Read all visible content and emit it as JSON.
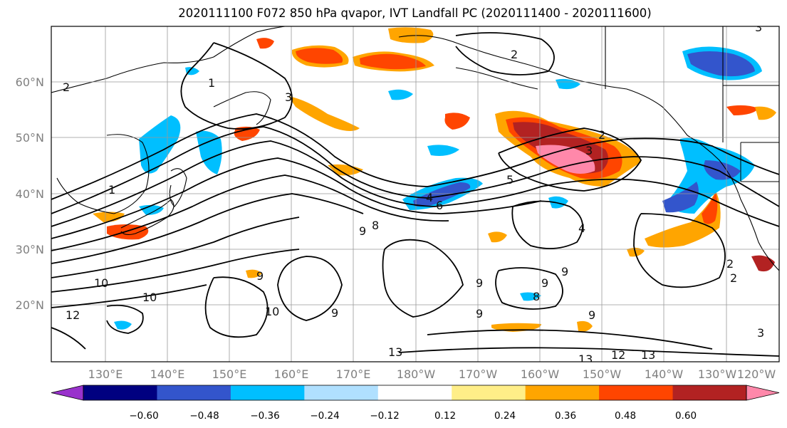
{
  "title": "2020111100 F072 850 hPa qvapor, IVT Landfall PC (2020111400 - 2020111600)",
  "lat_labels": [
    "60°N",
    "50°N",
    "40°N",
    "30°N",
    "20°N"
  ],
  "lon_labels": [
    "130°E",
    "140°E",
    "150°E",
    "160°E",
    "170°E",
    "180°W",
    "170°W",
    "160°W",
    "150°W",
    "140°W",
    "130°W",
    "120°W"
  ],
  "contour_labels": [
    "2",
    "1",
    "2",
    "1",
    "3",
    "4",
    "5",
    "6",
    "8",
    "9",
    "10",
    "10",
    "12",
    "13",
    "3",
    "2",
    "2",
    "4",
    "9",
    "9",
    "9",
    "9",
    "9",
    "8",
    "13",
    "12",
    "13",
    "3",
    "2",
    "3",
    "9",
    "10",
    "9"
  ],
  "colorbar": {
    "tick_labels": [
      "−0.60",
      "−0.48",
      "−0.36",
      "−0.24",
      "−0.12",
      "0.12",
      "0.24",
      "0.36",
      "0.48",
      "0.60"
    ],
    "levels": [
      -0.72,
      -0.6,
      -0.48,
      -0.36,
      -0.24,
      -0.12,
      0.12,
      0.24,
      0.36,
      0.48,
      0.6,
      0.72
    ],
    "colors": [
      "#9932cc",
      "#000080",
      "#3355cc",
      "#00bfff",
      "#b0e0ff",
      "#ffffff",
      "#ffee88",
      "#ffa500",
      "#ff4500",
      "#b22222",
      "#ff88aa"
    ]
  }
}
